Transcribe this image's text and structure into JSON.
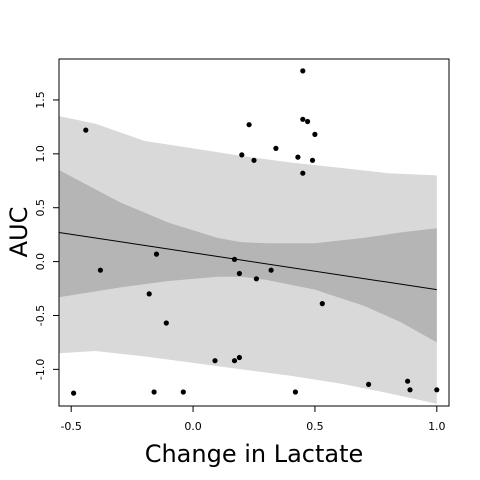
{
  "chart_data": {
    "type": "scatter",
    "title": "",
    "xlabel": "Change in Lactate",
    "ylabel": "AUC",
    "xlim": [
      -0.55,
      1.05
    ],
    "ylim": [
      -1.34,
      1.88
    ],
    "x_ticks": [
      {
        "value": -0.5,
        "label": "-0.5"
      },
      {
        "value": 0.0,
        "label": "0.0"
      },
      {
        "value": 0.5,
        "label": "0.5"
      },
      {
        "value": 1.0,
        "label": "1.0"
      }
    ],
    "y_ticks": [
      {
        "value": -1.0,
        "label": "-1.0"
      },
      {
        "value": -0.5,
        "label": "-0.5"
      },
      {
        "value": 0.0,
        "label": "0.0"
      },
      {
        "value": 0.5,
        "label": "0.5"
      },
      {
        "value": 1.0,
        "label": "1.0"
      },
      {
        "value": 1.5,
        "label": "1.5"
      }
    ],
    "grid": false,
    "legend": "none",
    "colors": {
      "points": "#000000",
      "regression_line": "#000000",
      "prediction_band": "#d9d9d9",
      "confidence_band": "#b5b5b5"
    },
    "regression_line": {
      "x": [
        -0.55,
        1.0
      ],
      "y": [
        0.27,
        -0.26
      ]
    },
    "confidence_band": {
      "x": [
        -0.55,
        -0.3,
        -0.1,
        0.1,
        0.2,
        0.3,
        0.5,
        0.7,
        0.85,
        1.0
      ],
      "upper": [
        0.85,
        0.55,
        0.36,
        0.22,
        0.18,
        0.17,
        0.17,
        0.22,
        0.27,
        0.31
      ],
      "lower": [
        -0.33,
        -0.24,
        -0.18,
        -0.14,
        -0.14,
        -0.17,
        -0.26,
        -0.41,
        -0.56,
        -0.75
      ]
    },
    "prediction_band": {
      "x": [
        -0.55,
        -0.4,
        -0.2,
        0.0,
        0.2,
        0.4,
        0.6,
        0.8,
        1.0
      ],
      "upper": [
        1.35,
        1.28,
        1.12,
        1.05,
        0.98,
        0.92,
        0.87,
        0.82,
        0.8
      ],
      "lower": [
        -0.85,
        -0.83,
        -0.88,
        -0.94,
        -1.0,
        -1.06,
        -1.13,
        -1.22,
        -1.32
      ]
    },
    "points": [
      {
        "x": -0.49,
        "y": -1.22
      },
      {
        "x": -0.44,
        "y": 1.22
      },
      {
        "x": -0.38,
        "y": -0.08
      },
      {
        "x": -0.18,
        "y": -0.3
      },
      {
        "x": -0.16,
        "y": -1.21
      },
      {
        "x": -0.15,
        "y": 0.07
      },
      {
        "x": -0.11,
        "y": -0.57
      },
      {
        "x": -0.04,
        "y": -1.21
      },
      {
        "x": 0.09,
        "y": -0.92
      },
      {
        "x": 0.17,
        "y": -0.92
      },
      {
        "x": 0.17,
        "y": 0.02
      },
      {
        "x": 0.19,
        "y": -0.11
      },
      {
        "x": 0.19,
        "y": -0.89
      },
      {
        "x": 0.2,
        "y": 0.99
      },
      {
        "x": 0.23,
        "y": 1.27
      },
      {
        "x": 0.25,
        "y": 0.94
      },
      {
        "x": 0.26,
        "y": -0.16
      },
      {
        "x": 0.32,
        "y": -0.08
      },
      {
        "x": 0.34,
        "y": 1.05
      },
      {
        "x": 0.42,
        "y": -1.21
      },
      {
        "x": 0.43,
        "y": 0.97
      },
      {
        "x": 0.45,
        "y": 0.82
      },
      {
        "x": 0.45,
        "y": 1.77
      },
      {
        "x": 0.45,
        "y": 1.32
      },
      {
        "x": 0.47,
        "y": 1.3
      },
      {
        "x": 0.49,
        "y": 0.94
      },
      {
        "x": 0.5,
        "y": 1.18
      },
      {
        "x": 0.53,
        "y": -0.39
      },
      {
        "x": 0.72,
        "y": -1.14
      },
      {
        "x": 0.88,
        "y": -1.11
      },
      {
        "x": 0.89,
        "y": -1.19
      },
      {
        "x": 1.0,
        "y": -1.19
      }
    ]
  }
}
